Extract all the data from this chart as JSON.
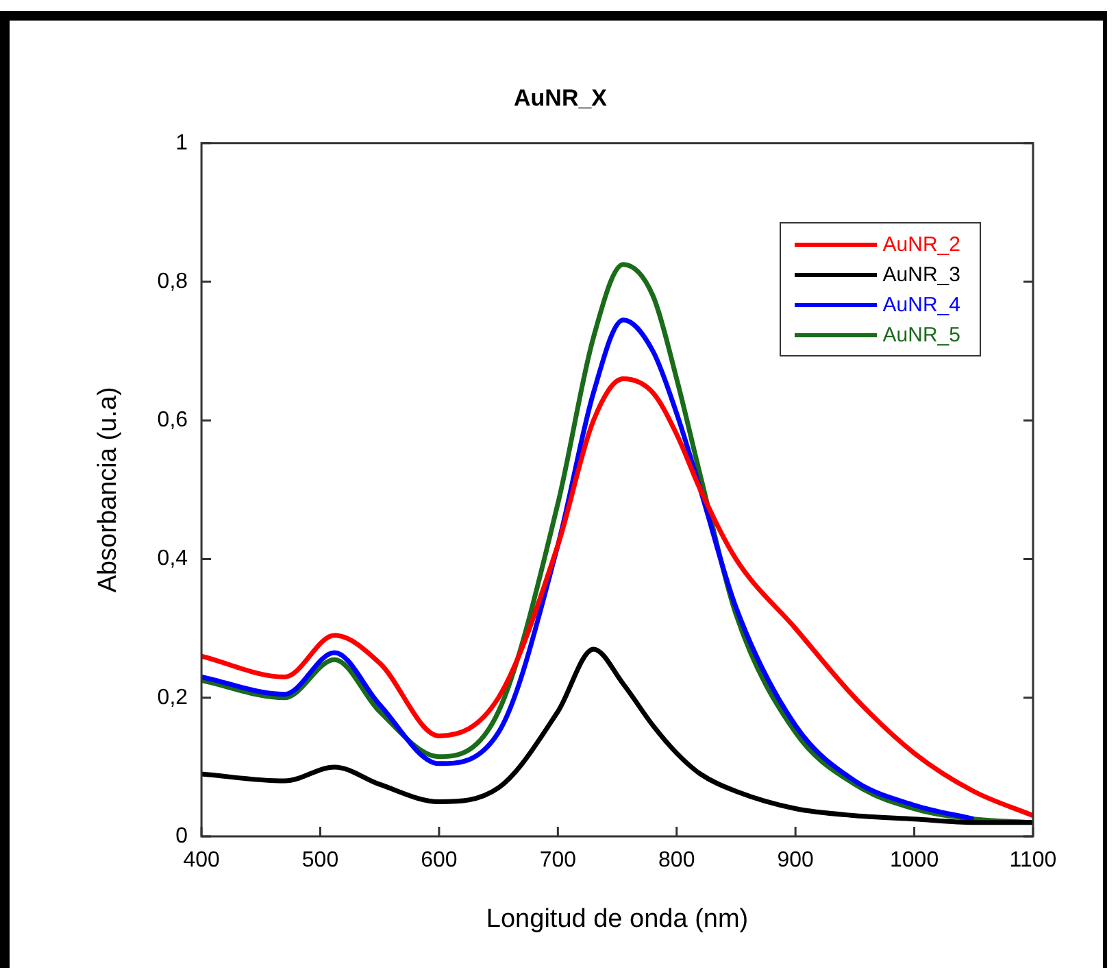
{
  "chart_data": {
    "type": "line",
    "title": "AuNR_X",
    "xlabel": "Longitud de onda (nm)",
    "ylabel": "Absorbancia (u.a)",
    "x": [
      400,
      470,
      512,
      550,
      600,
      650,
      700,
      730,
      755,
      780,
      800,
      820,
      850,
      900,
      950,
      1000,
      1050,
      1100
    ],
    "xlim": [
      400,
      1100
    ],
    "xticks": [
      400,
      500,
      600,
      700,
      800,
      900,
      1000,
      1100
    ],
    "ylim": [
      0,
      1
    ],
    "yticks": [
      0,
      {
        "value": 0.2,
        "label": "0,2"
      },
      {
        "value": 0.4,
        "label": "0,4"
      },
      {
        "value": 0.6,
        "label": "0,6"
      },
      {
        "value": 0.8,
        "label": "0,8"
      },
      1
    ],
    "grid": false,
    "legend": "top right",
    "marker": "none",
    "line_style": "solid",
    "series": [
      {
        "name": "AuNR_2",
        "color": "#ff0000",
        "values": [
          0.26,
          0.23,
          0.29,
          0.25,
          0.145,
          0.2,
          0.42,
          0.6,
          0.66,
          0.64,
          0.58,
          0.5,
          0.4,
          0.3,
          0.2,
          0.12,
          0.065,
          0.03
        ]
      },
      {
        "name": "AuNR_3",
        "color": "#000000",
        "values": [
          0.09,
          0.08,
          0.1,
          0.075,
          0.05,
          0.07,
          0.18,
          0.27,
          0.22,
          0.16,
          0.12,
          0.09,
          0.065,
          0.04,
          0.03,
          0.025,
          0.02,
          0.02
        ]
      },
      {
        "name": "AuNR_4",
        "color": "#0000ff",
        "values": [
          0.23,
          0.205,
          0.265,
          0.19,
          0.105,
          0.15,
          0.42,
          0.64,
          0.745,
          0.7,
          0.61,
          0.5,
          0.33,
          0.16,
          0.08,
          0.045,
          0.025,
          null
        ]
      },
      {
        "name": "AuNR_5",
        "color": "#1a6b1a",
        "values": [
          0.225,
          0.2,
          0.255,
          0.18,
          0.115,
          0.18,
          0.48,
          0.72,
          0.825,
          0.78,
          0.66,
          0.52,
          0.32,
          0.15,
          0.075,
          0.04,
          0.025,
          0.02
        ]
      }
    ]
  }
}
